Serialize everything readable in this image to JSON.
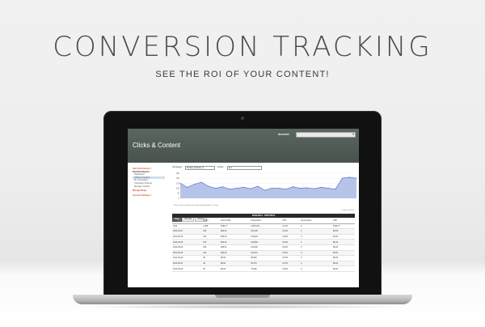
{
  "headline": "CONVERSION TRACKING",
  "subhead": "SEE THE ROI OF YOUR CONTENT!",
  "app": {
    "title": "Clicks & Content",
    "account_label": "Account:",
    "account_value": ""
  },
  "nav": [
    {
      "label": "Site Performance >",
      "kind": "section"
    },
    {
      "label": "Paid Distribution",
      "kind": "head"
    },
    {
      "label": "Dashboard",
      "kind": "item"
    },
    {
      "label": "Clicks & Content",
      "kind": "active"
    },
    {
      "label": "My Campaigns",
      "kind": "item"
    },
    {
      "label": "Campaign Settings",
      "kind": "item"
    },
    {
      "label": "Manage Content",
      "kind": "item"
    },
    {
      "label": "Manage Blogs",
      "kind": "section"
    },
    {
      "label": "Account Settings >",
      "kind": "section"
    }
  ],
  "filters": {
    "campaign_label": "Campaign:",
    "campaign_value": "Default_Outbrain_S",
    "article_label": "Article:",
    "article_value": "ALL"
  },
  "chart_data": {
    "type": "area",
    "series": [
      {
        "values": [
          150,
          110,
          140,
          160,
          120,
          100,
          115,
          90,
          100,
          110,
          95,
          120,
          80,
          100,
          100,
          90,
          115,
          100,
          105,
          95,
          110,
          100,
          90,
          200,
          210,
          200
        ]
      }
    ],
    "ylim": [
      0,
      250
    ],
    "yticks": [
      "250",
      "200",
      "150",
      "100",
      "50",
      "0"
    ],
    "color": "#7b93d8"
  },
  "note": "Please note, reporting stats may be delayed by 1-2 hours",
  "tabs": [
    "Daily",
    "Monthly",
    "Content"
  ],
  "active_tab": "Daily",
  "export": "Export to Excel",
  "date_range": "06/01/2014 - 06/27/2014",
  "table": {
    "columns": [
      "Date",
      "Clicks",
      "Cost (USD)",
      "Impressions",
      "CTR",
      "Conversions",
      "CPA"
    ],
    "rows": [
      [
        "Total",
        "3,456",
        "$796.77",
        "2,836,100",
        "0.12%",
        "0",
        "$796.77"
      ],
      [
        "2014-06-27",
        "150",
        "$30.00",
        "102,100",
        "0.15%",
        "0",
        "$0.00"
      ],
      [
        "2014-06-26",
        "190",
        "$36.00",
        "108,220",
        "0.18%",
        "0",
        "$0.00"
      ],
      [
        "2014-06-25",
        "160",
        "$32.00",
        "106,800",
        "0.15%",
        "0",
        "$0.00"
      ],
      [
        "2014-06-24",
        "180",
        "$36.00",
        "114,000",
        "0.16%",
        "0",
        "$0.00"
      ],
      [
        "2014-06-23",
        "160",
        "$32.00",
        "110,072",
        "0.15%",
        "0",
        "$0.00"
      ],
      [
        "2014-06-22",
        "45",
        "$9.00",
        "66,520",
        "0.07%",
        "0",
        "$0.00"
      ],
      [
        "2014-06-21",
        "40",
        "$8.00",
        "56,470",
        "0.07%",
        "0",
        "$0.00"
      ],
      [
        "2014-06-20",
        "30",
        "$6.00",
        "70,900",
        "0.04%",
        "0",
        "$0.00"
      ]
    ]
  }
}
